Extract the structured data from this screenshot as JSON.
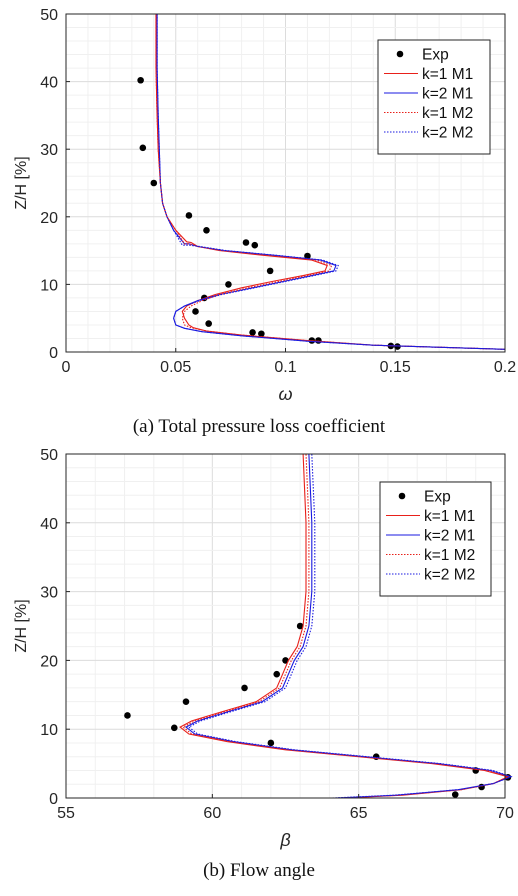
{
  "captions": {
    "a": "(a) Total pressure loss coefficient",
    "b": "(b) Flow angle"
  },
  "chart_data": [
    {
      "type": "line",
      "xlabel": "ω",
      "ylabel": "Z/H [%]",
      "xlim": [
        0,
        0.2
      ],
      "ylim": [
        0,
        50
      ],
      "xticks": [
        "0",
        "0.05",
        "0.1",
        "0.15",
        "0.2"
      ],
      "yticks": [
        "0",
        "10",
        "20",
        "30",
        "40",
        "50"
      ],
      "grid": true,
      "minor_grid": true,
      "legend_position": "top-right",
      "legend": [
        "Exp",
        "k=1 M1",
        "k=2 M1",
        "k=1 M2",
        "k=2 M2"
      ],
      "series": [
        {
          "name": "Exp",
          "style": "markers",
          "color": "#000000",
          "x": [
            0.034,
            0.035,
            0.04,
            0.056,
            0.064,
            0.082,
            0.086,
            0.11,
            0.093,
            0.074,
            0.063,
            0.059,
            0.065,
            0.085,
            0.089,
            0.112,
            0.115,
            0.148,
            0.151
          ],
          "y": [
            40.2,
            30.2,
            25,
            20.2,
            18,
            16.2,
            15.8,
            14.2,
            12,
            10,
            8,
            6,
            4.2,
            2.9,
            2.7,
            1.7,
            1.7,
            0.9,
            0.8
          ]
        },
        {
          "name": "k=1 M1",
          "style": "solid",
          "color": "#e8201a",
          "x": [
            0.2,
            0.14,
            0.11,
            0.08,
            0.064,
            0.058,
            0.056,
            0.054,
            0.053,
            0.055,
            0.06,
            0.068,
            0.08,
            0.095,
            0.108,
            0.118,
            0.119,
            0.112,
            0.09,
            0.07,
            0.06,
            0.057,
            0.055,
            0.05,
            0.046,
            0.044,
            0.043,
            0.042,
            0.0415,
            0.041,
            0.041
          ],
          "y": [
            0.4,
            1,
            1.7,
            2.5,
            3.1,
            3.6,
            4,
            5,
            6,
            6.8,
            7.6,
            8.5,
            9.5,
            10.5,
            11.3,
            12,
            12.8,
            13.6,
            14.3,
            15,
            15.6,
            16.2,
            16.3,
            18,
            20,
            22,
            25,
            30,
            35,
            42,
            50
          ]
        },
        {
          "name": "k=2 M1",
          "style": "solid",
          "color": "#1a1ae0",
          "x": [
            0.2,
            0.14,
            0.11,
            0.08,
            0.062,
            0.054,
            0.05,
            0.049,
            0.05,
            0.054,
            0.06,
            0.07,
            0.085,
            0.1,
            0.112,
            0.122,
            0.123,
            0.116,
            0.095,
            0.072,
            0.06,
            0.056,
            0.054,
            0.049,
            0.046,
            0.044,
            0.043,
            0.0425,
            0.042,
            0.0415,
            0.0415
          ],
          "y": [
            0.4,
            1,
            1.6,
            2.4,
            3,
            3.5,
            4,
            5,
            6,
            6.8,
            7.6,
            8.5,
            9.5,
            10.5,
            11.3,
            12,
            12.8,
            13.6,
            14.3,
            15,
            15.6,
            16,
            16,
            18,
            20,
            22,
            25,
            30,
            35,
            42,
            50
          ]
        },
        {
          "name": "k=1 M2",
          "style": "dotted",
          "color": "#e8201a",
          "x": [
            0.2,
            0.14,
            0.11,
            0.08,
            0.064,
            0.057,
            0.054,
            0.053,
            0.054,
            0.057,
            0.062,
            0.07,
            0.083,
            0.098,
            0.11,
            0.12,
            0.121,
            0.114,
            0.092,
            0.071,
            0.06,
            0.056,
            0.054,
            0.05,
            0.046,
            0.044,
            0.043,
            0.042,
            0.0415,
            0.041,
            0.041
          ],
          "y": [
            0.4,
            1,
            1.7,
            2.5,
            3.1,
            3.6,
            4,
            5,
            6,
            6.8,
            7.6,
            8.5,
            9.5,
            10.5,
            11.3,
            12,
            12.8,
            13.6,
            14.3,
            15,
            15.6,
            16,
            16,
            18,
            20,
            22,
            25,
            30,
            35,
            42,
            50
          ]
        },
        {
          "name": "k=2 M2",
          "style": "dotted",
          "color": "#1a1ae0",
          "x": [
            0.2,
            0.14,
            0.11,
            0.08,
            0.062,
            0.054,
            0.05,
            0.049,
            0.05,
            0.054,
            0.061,
            0.071,
            0.086,
            0.101,
            0.113,
            0.123,
            0.124,
            0.117,
            0.096,
            0.073,
            0.061,
            0.056,
            0.053,
            0.049,
            0.046,
            0.044,
            0.043,
            0.0425,
            0.042,
            0.0415,
            0.0415
          ],
          "y": [
            0.4,
            1,
            1.6,
            2.4,
            3,
            3.5,
            4,
            5,
            6,
            6.8,
            7.6,
            8.5,
            9.5,
            10.5,
            11.3,
            12,
            12.8,
            13.6,
            14.3,
            15,
            15.6,
            15.8,
            15.8,
            18,
            20,
            22,
            25,
            30,
            35,
            42,
            50
          ]
        }
      ]
    },
    {
      "type": "line",
      "xlabel": "β",
      "ylabel": "Z/H [%]",
      "xlim": [
        55,
        70
      ],
      "ylim": [
        0,
        50
      ],
      "xticks": [
        "55",
        "60",
        "65",
        "70"
      ],
      "yticks": [
        "0",
        "10",
        "20",
        "30",
        "40",
        "50"
      ],
      "grid": true,
      "minor_grid": true,
      "legend_position": "top-right",
      "legend": [
        "Exp",
        "k=1 M1",
        "k=2 M1",
        "k=1 M2",
        "k=2 M2"
      ],
      "series": [
        {
          "name": "Exp",
          "style": "markers",
          "color": "#000000",
          "x": [
            63,
            62.5,
            62.2,
            61.1,
            59.1,
            57.1,
            58.7,
            62,
            65.6,
            69,
            70.1,
            69.2,
            68.3
          ],
          "y": [
            25,
            20,
            18,
            16,
            14,
            12,
            10.2,
            8,
            6,
            4,
            3,
            1.6,
            0.5
          ]
        },
        {
          "name": "k=1 M1",
          "style": "solid",
          "color": "#e8201a",
          "x": [
            64.5,
            66.5,
            68.5,
            69.6,
            70.1,
            69.3,
            67.5,
            65,
            62.5,
            60.5,
            59.2,
            58.9,
            59.3,
            60.3,
            61.5,
            62.2,
            62.4,
            62.6,
            62.9,
            63.1,
            63.2,
            63.2,
            63.1
          ],
          "y": [
            0,
            0.4,
            1.2,
            2.1,
            3.1,
            4,
            5,
            6,
            7,
            8.2,
            9.3,
            10.3,
            11.2,
            12.5,
            14,
            16,
            18,
            20,
            22,
            25,
            30,
            40,
            50
          ]
        },
        {
          "name": "k=2 M1",
          "style": "solid",
          "color": "#1a1ae0",
          "x": [
            64.2,
            66.3,
            68.4,
            69.6,
            70.2,
            69.5,
            67.7,
            65.2,
            62.7,
            60.7,
            59.4,
            59.1,
            59.5,
            60.5,
            61.7,
            62.4,
            62.6,
            62.8,
            63.1,
            63.3,
            63.4,
            63.4,
            63.3
          ],
          "y": [
            0,
            0.4,
            1.2,
            2.1,
            3.1,
            4,
            5,
            6,
            7,
            8.2,
            9.3,
            10.3,
            11.2,
            12.5,
            14,
            16,
            18,
            20,
            22,
            25,
            30,
            40,
            50
          ]
        },
        {
          "name": "k=1 M2",
          "style": "dotted",
          "color": "#e8201a",
          "x": [
            64.4,
            66.4,
            68.5,
            69.6,
            70.1,
            69.4,
            67.6,
            65.1,
            62.6,
            60.6,
            59.3,
            59,
            59.4,
            60.4,
            61.6,
            62.3,
            62.5,
            62.7,
            63,
            63.2,
            63.3,
            63.3,
            63.2
          ],
          "y": [
            0,
            0.4,
            1.2,
            2.1,
            3.1,
            4,
            5,
            6,
            7,
            8.2,
            9.3,
            10.3,
            11.2,
            12.5,
            14,
            16,
            18,
            20,
            22,
            25,
            30,
            40,
            50
          ]
        },
        {
          "name": "k=2 M2",
          "style": "dotted",
          "color": "#1a1ae0",
          "x": [
            64.1,
            66.2,
            68.4,
            69.6,
            70.2,
            69.6,
            67.8,
            65.3,
            62.8,
            60.8,
            59.5,
            59.2,
            59.6,
            60.6,
            61.8,
            62.5,
            62.7,
            62.9,
            63.2,
            63.4,
            63.5,
            63.5,
            63.4
          ],
          "y": [
            0,
            0.4,
            1.2,
            2.1,
            3.1,
            4,
            5,
            6,
            7,
            8.2,
            9.3,
            10.3,
            11.2,
            12.5,
            14,
            16,
            18,
            20,
            22,
            25,
            30,
            40,
            50
          ]
        }
      ]
    }
  ]
}
